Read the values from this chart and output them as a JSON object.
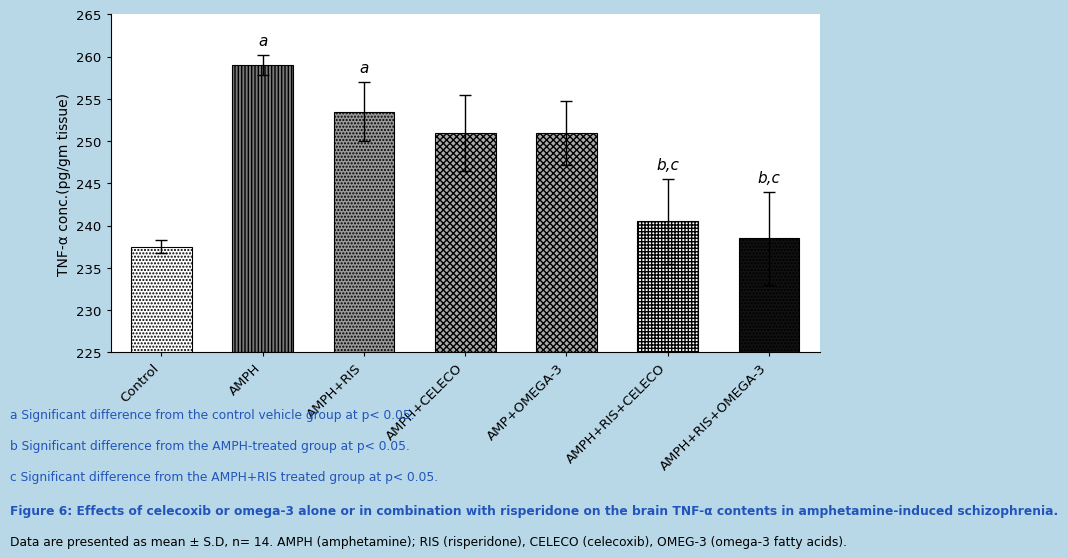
{
  "categories": [
    "Control",
    "AMPH",
    "AMPH+RIS",
    "AMPH+CELECO",
    "AMP+OMEGA-3",
    "AMPH+RIS+CELECO",
    "AMPH+RIS+OMEGA-3"
  ],
  "values": [
    237.5,
    259.0,
    253.5,
    251.0,
    251.0,
    240.5,
    238.5
  ],
  "errors": [
    0.8,
    1.2,
    3.5,
    4.5,
    3.8,
    5.0,
    5.5
  ],
  "ylim": [
    225,
    265
  ],
  "yticks": [
    225,
    230,
    235,
    240,
    245,
    250,
    255,
    260,
    265
  ],
  "ylabel": "TNF-α conc.(pg/gm tissue)",
  "background_color": "#b8d8e8",
  "plot_bg_color": "#ffffff",
  "significance_labels": [
    "",
    "a",
    "a",
    "",
    "",
    "b,c",
    "b,c"
  ],
  "footnote1": "a Significant difference from the control vehicle group at p< 0.05.",
  "footnote2": "b Significant difference from the AMPH-treated group at p< 0.05.",
  "footnote3": "c Significant difference from the AMPH+RIS treated group at p< 0.05.",
  "figure_caption_bold": "Figure 6: Effects of celecoxib or omega-3 alone or in combination with risperidone on the brain TNF-α contents in amphetamine-induced schizophrenia.",
  "figure_caption_normal": " Data are presented as mean ± S.D, n= 14. AMPH (amphetamine); RIS (risperidone), CELECO (celecoxib), OMEG-3 (omega-3 fatty acids).",
  "text_color_blue": "#2255bb",
  "bar_face_colors": [
    "white",
    "#7a7a7a",
    "#909090",
    "#b0b0b0",
    "#b0b0b0",
    "white",
    "#111111"
  ],
  "hatch_patterns": [
    "....",
    "|||||||",
    "......",
    "xxxxxxxx",
    "xxxxxxxx",
    "+++++",
    "......"
  ],
  "bar_width": 0.6
}
